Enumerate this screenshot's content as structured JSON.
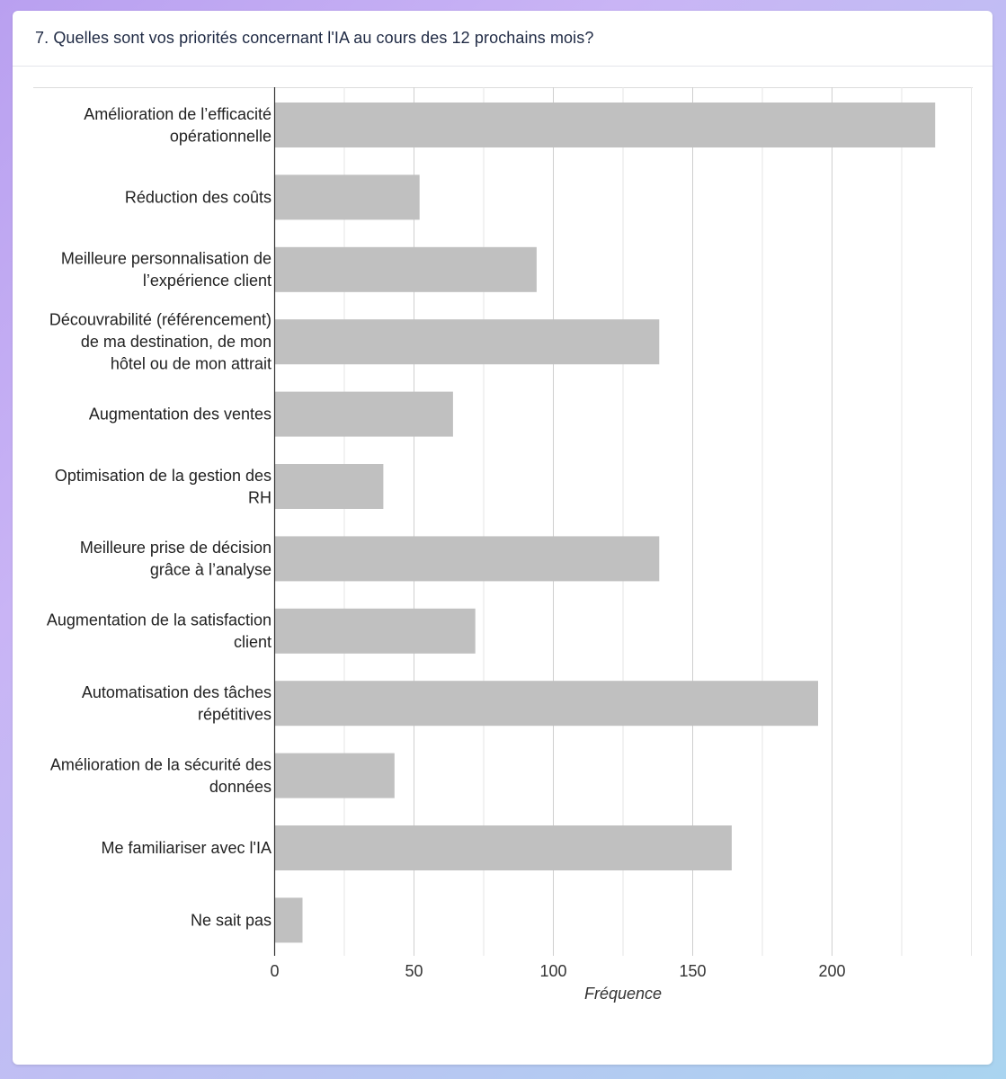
{
  "card": {
    "title": "7. Quelles sont vos priorités concernant l'IA au cours des 12 prochains mois?"
  },
  "chart_data": {
    "type": "bar",
    "orientation": "horizontal",
    "title": "",
    "xlabel": "Fréquence",
    "ylabel": "",
    "xlim": [
      0,
      250
    ],
    "major_ticks": [
      0,
      50,
      100,
      150,
      200
    ],
    "minor_ticks": [
      25,
      75,
      125,
      175,
      225,
      250
    ],
    "grid": true,
    "bar_color": "#c0c0c0",
    "categories": [
      [
        "Amélioration de l’efficacité",
        "opérationnelle"
      ],
      [
        "Réduction des coûts"
      ],
      [
        "Meilleure personnalisation de",
        "l’expérience client"
      ],
      [
        "Découvrabilité (référencement)",
        "de ma destination, de mon",
        "hôtel ou de mon attrait"
      ],
      [
        "Augmentation des ventes"
      ],
      [
        "Optimisation de la gestion des",
        "RH"
      ],
      [
        "Meilleure prise de décision",
        "grâce à l’analyse"
      ],
      [
        "Augmentation de la satisfaction",
        "client"
      ],
      [
        "Automatisation des tâches",
        "répétitives"
      ],
      [
        "Amélioration de la sécurité des",
        "données"
      ],
      [
        "Me familiariser avec l'IA"
      ],
      [
        "Ne sait pas"
      ]
    ],
    "values": [
      237,
      52,
      94,
      138,
      64,
      39,
      138,
      72,
      195,
      43,
      164,
      10
    ]
  }
}
